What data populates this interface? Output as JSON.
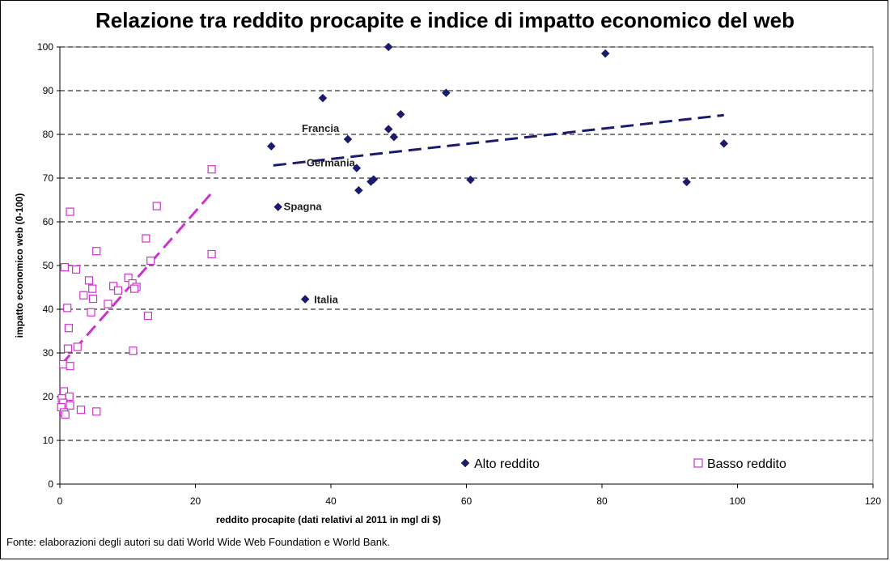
{
  "chart_data": {
    "type": "scatter",
    "title": "Relazione tra reddito procapite e indice di impatto economico del web",
    "xlabel": "reddito procapite (dati relativi al 2011 in mgl di $)",
    "ylabel": "impatto economico web (0-100)",
    "xlim": [
      0,
      120
    ],
    "ylim": [
      0,
      100
    ],
    "xticks": [
      0,
      20,
      40,
      60,
      80,
      100,
      120
    ],
    "yticks": [
      0,
      10,
      20,
      30,
      40,
      50,
      60,
      70,
      80,
      90,
      100
    ],
    "grid": "horizontal dashed",
    "legend": "bottom-inside",
    "series": [
      {
        "name": "Alto reddito",
        "color": "#1b1b6e",
        "marker": "diamond",
        "points": [
          {
            "x": 48.5,
            "y": 100
          },
          {
            "x": 80.5,
            "y": 98.5
          },
          {
            "x": 57.0,
            "y": 89.5
          },
          {
            "x": 38.8,
            "y": 88.3
          },
          {
            "x": 50.3,
            "y": 84.6
          },
          {
            "x": 48.5,
            "y": 81.2
          },
          {
            "x": 49.3,
            "y": 79.4
          },
          {
            "x": 42.5,
            "y": 78.9
          },
          {
            "x": 31.2,
            "y": 77.3
          },
          {
            "x": 98.0,
            "y": 77.9
          },
          {
            "x": 43.8,
            "y": 72.3
          },
          {
            "x": 46.3,
            "y": 69.7
          },
          {
            "x": 45.9,
            "y": 69.2
          },
          {
            "x": 60.6,
            "y": 69.6
          },
          {
            "x": 92.5,
            "y": 69.1
          },
          {
            "x": 44.1,
            "y": 67.2
          },
          {
            "x": 32.2,
            "y": 63.4
          },
          {
            "x": 36.2,
            "y": 42.3
          }
        ],
        "trend": {
          "x": [
            31.5,
            98.0
          ],
          "y": [
            72.9,
            84.4
          ]
        }
      },
      {
        "name": "Basso reddito",
        "color": "#cc33cc",
        "marker": "open-square",
        "points": [
          {
            "x": 22.4,
            "y": 72.0
          },
          {
            "x": 14.3,
            "y": 63.6
          },
          {
            "x": 1.5,
            "y": 62.3
          },
          {
            "x": 12.7,
            "y": 56.2
          },
          {
            "x": 5.4,
            "y": 53.3
          },
          {
            "x": 22.4,
            "y": 52.6
          },
          {
            "x": 13.4,
            "y": 51.1
          },
          {
            "x": 0.7,
            "y": 49.6
          },
          {
            "x": 2.4,
            "y": 49.1
          },
          {
            "x": 10.1,
            "y": 47.2
          },
          {
            "x": 4.3,
            "y": 46.6
          },
          {
            "x": 10.7,
            "y": 45.9
          },
          {
            "x": 11.3,
            "y": 45.1
          },
          {
            "x": 7.9,
            "y": 45.3
          },
          {
            "x": 4.8,
            "y": 44.7
          },
          {
            "x": 8.6,
            "y": 44.3
          },
          {
            "x": 11.0,
            "y": 44.7
          },
          {
            "x": 3.5,
            "y": 43.2
          },
          {
            "x": 4.9,
            "y": 42.4
          },
          {
            "x": 7.1,
            "y": 41.2
          },
          {
            "x": 1.1,
            "y": 40.3
          },
          {
            "x": 4.6,
            "y": 39.3
          },
          {
            "x": 13.0,
            "y": 38.5
          },
          {
            "x": 1.3,
            "y": 35.7
          },
          {
            "x": 2.6,
            "y": 31.4
          },
          {
            "x": 1.2,
            "y": 31.0
          },
          {
            "x": 10.8,
            "y": 30.5
          },
          {
            "x": 0.5,
            "y": 27.4
          },
          {
            "x": 1.5,
            "y": 27.0
          },
          {
            "x": 0.6,
            "y": 21.2
          },
          {
            "x": 1.4,
            "y": 20.0
          },
          {
            "x": 0.3,
            "y": 19.6
          },
          {
            "x": 0.5,
            "y": 18.6
          },
          {
            "x": 1.5,
            "y": 18.0
          },
          {
            "x": 0.2,
            "y": 17.6
          },
          {
            "x": 3.1,
            "y": 17.0
          },
          {
            "x": 5.4,
            "y": 16.6
          },
          {
            "x": 0.6,
            "y": 16.4
          },
          {
            "x": 0.8,
            "y": 15.9
          }
        ],
        "trend": {
          "x": [
            0.2,
            22.4
          ],
          "y": [
            27.3,
            66.6
          ]
        }
      }
    ],
    "annotations": [
      {
        "text": "Francia",
        "x": 42.5,
        "y": 78.9
      },
      {
        "text": "Germania",
        "x": 43.8,
        "y": 72.3
      },
      {
        "text": "Spagna",
        "x": 32.2,
        "y": 63.4
      },
      {
        "text": "Italia",
        "x": 36.2,
        "y": 42.3
      }
    ]
  },
  "source": "Fonte: elaborazioni degli autori su dati World Wide Web Foundation e World Bank."
}
